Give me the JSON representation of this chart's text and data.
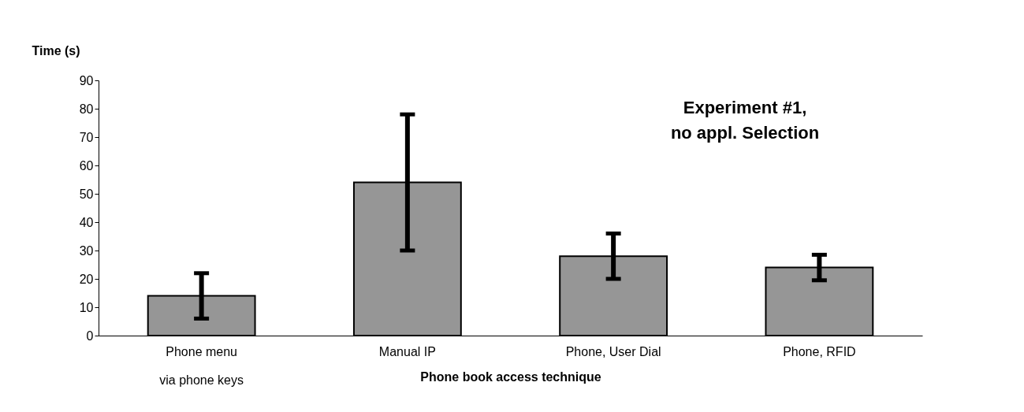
{
  "chart_data": {
    "type": "bar",
    "categories": [
      "Phone menu\nvia phone keys",
      "Manual IP",
      "Phone, User Dial",
      "Phone, RFID"
    ],
    "values": [
      14,
      54,
      28,
      24
    ],
    "errors": [
      8,
      24,
      8,
      4.5
    ],
    "color": "#969696",
    "xlabel": "Phone book access technique",
    "ylabel": "Time (s)",
    "ylim": [
      0,
      90
    ],
    "yticks": [
      0,
      10,
      20,
      30,
      40,
      50,
      60,
      70,
      80,
      90
    ],
    "annotations": [
      "Experiment #1,\nno appl. Selection"
    ],
    "grid": false
  }
}
